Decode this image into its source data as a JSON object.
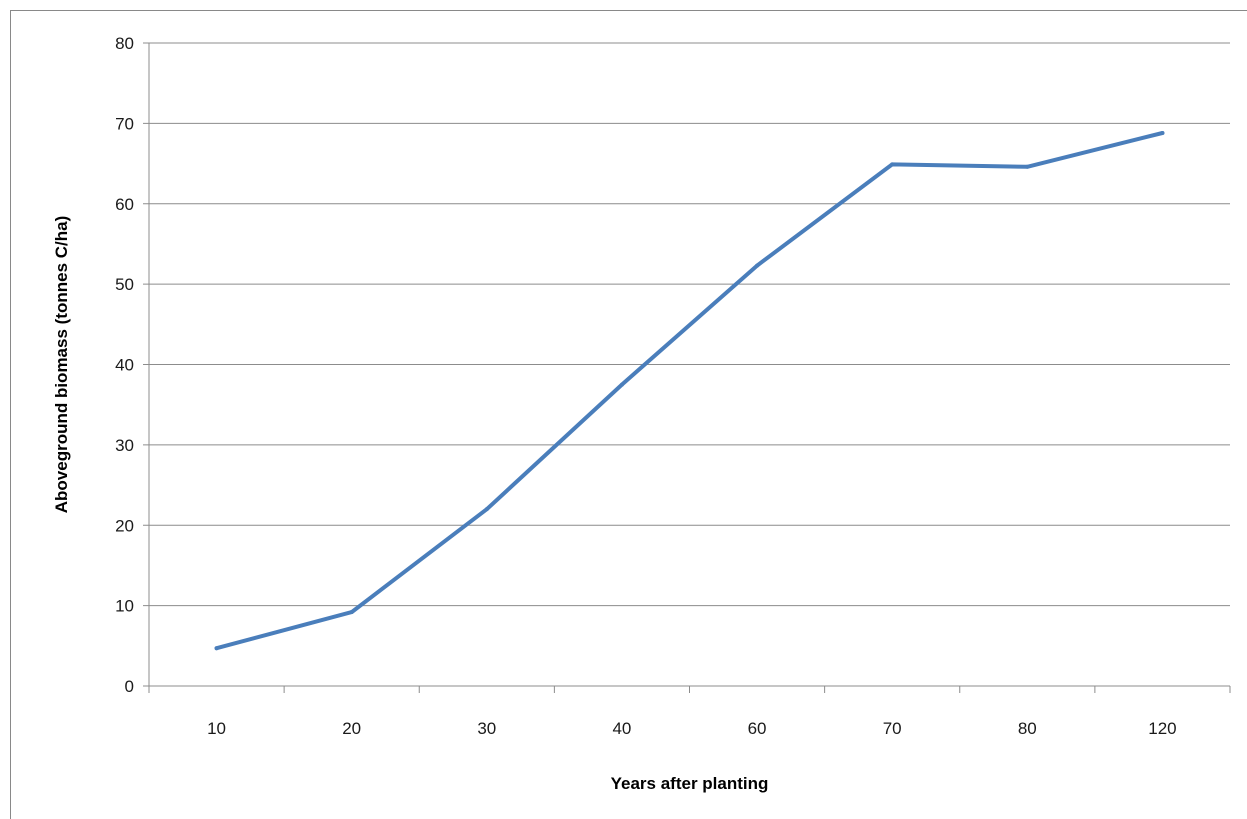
{
  "chart_data": {
    "type": "line",
    "title": "",
    "xlabel": "Years after planting",
    "ylabel": "Aboveground biomass (tonnes C/ha)",
    "categories": [
      "10",
      "20",
      "30",
      "40",
      "60",
      "70",
      "80",
      "120"
    ],
    "series": [
      {
        "values": [
          4.7,
          9.2,
          22.0,
          37.5,
          52.3,
          64.9,
          64.6,
          68.8
        ],
        "color": "#4a7ebb"
      }
    ],
    "ylim": [
      0,
      80
    ],
    "yticks": [
      "0",
      "10",
      "20",
      "30",
      "40",
      "50",
      "60",
      "70",
      "80"
    ],
    "grid": "horizontal",
    "legend": "none"
  }
}
